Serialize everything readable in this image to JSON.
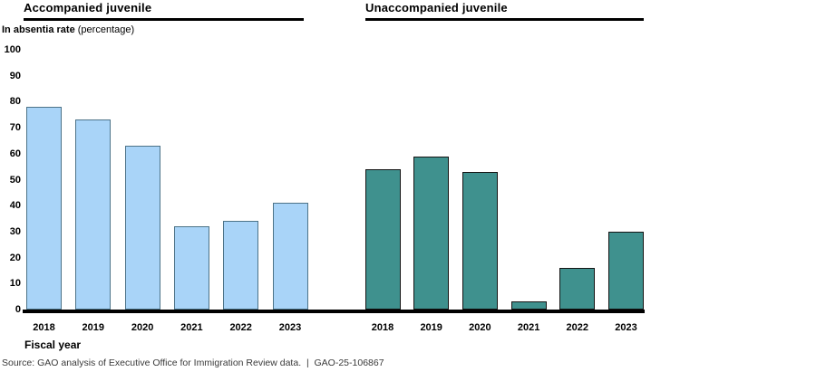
{
  "chart_data": {
    "type": "bar",
    "ylabel_bold": "In absentia rate",
    "ylabel_note": "(percentage)",
    "xlabel": "Fiscal year",
    "ylim": [
      0,
      100
    ],
    "y_ticks": [
      0,
      10,
      20,
      30,
      40,
      50,
      60,
      70,
      80,
      90,
      100
    ],
    "grid": false,
    "legend": "none",
    "categories": [
      "2018",
      "2019",
      "2020",
      "2021",
      "2022",
      "2023"
    ],
    "groups": [
      {
        "id": "accompanied",
        "title": "Accompanied juvenile",
        "color": "#A9D4F8",
        "border_color": "#4D7388",
        "categories": [
          "2018",
          "2019",
          "2020",
          "2021",
          "2022",
          "2023"
        ],
        "values": [
          78,
          73,
          63,
          32,
          34,
          41
        ]
      },
      {
        "id": "unaccompanied",
        "title": "Unaccompanied juvenile",
        "color": "#3F918E",
        "border_color": "#141414",
        "categories": [
          "2018",
          "2019",
          "2020",
          "2021",
          "2022",
          "2023"
        ],
        "values": [
          54,
          59,
          53,
          3,
          16,
          30
        ]
      }
    ]
  },
  "source": "Source: GAO analysis of Executive Office for Immigration Review data.  |  GAO-25-106867"
}
